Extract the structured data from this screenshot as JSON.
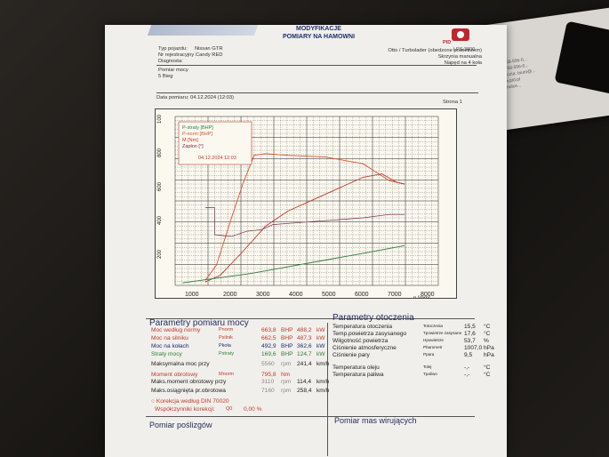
{
  "header": {
    "brand_line1": "MODYFIKACJE",
    "brand_line2": "POMIARY NA HAMOWNI",
    "pid_label": "PID",
    "lps": "LPS 3000",
    "vehicle_type_label": "Typ pojazdu:",
    "vehicle_type": "Nissan GTR",
    "registration_label": "Nr rejestracyjny",
    "registration": "Candy RED",
    "diagnosis_label": "Diagnosta:",
    "engine_info": "Otto / Turbolader (obedzone powietrzem)",
    "gearbox": "Skrzynia manualna",
    "drive": "Napęd na 4 koła",
    "measurement_type": "Pomiar mocy",
    "profile": "5 Bieg",
    "date_label": "Data pomiaru:",
    "date": "04.12.2024 (12:03)",
    "page_label": "Strona 1"
  },
  "graph": {
    "y_left_ticks": [
      "100",
      "800",
      "600",
      "400",
      "200"
    ],
    "x_ticks": [
      "1000",
      "2000",
      "3000",
      "4000",
      "5000",
      "6000",
      "7000",
      "8000"
    ],
    "x_unit": "n [rpm]",
    "legend": [
      "P-straty [BHP]",
      "P-norm [BHP]",
      "M [Nm]",
      "Zapłon [°]"
    ],
    "legend_date": "04.12.2024 12:03",
    "colors": {
      "power": "#d9542b",
      "torque": "#c0392b",
      "loss": "#2f7d3a",
      "ignition": "#7a2a4a"
    }
  },
  "params_power": {
    "title": "Parametry pomiaru mocy",
    "rows": [
      {
        "label": "Moc według normy",
        "sym": "Pnorm",
        "v1": "663,8",
        "u1": "BHP",
        "v2": "488,2",
        "u2": "kW"
      },
      {
        "label": "Moc na silniku",
        "sym": "Psilnik",
        "v1": "662,5",
        "u1": "BHP",
        "v2": "487,3",
        "u2": "kW"
      },
      {
        "label": "Moc na kołach",
        "sym": "Pkoła",
        "v1": "492,9",
        "u1": "BHP",
        "v2": "362,6",
        "u2": "kW"
      },
      {
        "label": "Straty mocy",
        "sym": "Pstraty",
        "v1": "169,6",
        "u1": "BHP",
        "v2": "124,7",
        "u2": "kW"
      }
    ],
    "max_power_rpm_label": "Maksymalna moc przy",
    "max_power_rpm": "5560",
    "max_power_speed": "241,4",
    "torque_label": "Moment obrotowy",
    "torque_sym": "Mnorm",
    "torque_value": "795,8",
    "torque_unit": "Nm",
    "max_torque_label": "Maks.moment obrotowy przy",
    "max_torque_rpm": "3110",
    "max_torque_speed": "114,4",
    "max_rpm_label": "Maks.osiągnięta pr.obrotowa",
    "max_rpm": "7160",
    "max_rpm_speed": "258,4",
    "rpm_unit": "rpm",
    "speed_unit": "km/h",
    "correction_label": "Korekcja według DIN 70020",
    "correction_factor_label": "Współczynniki korekcji:",
    "correction_sym": "Q0",
    "correction_value": "0,00 %"
  },
  "params_env": {
    "title": "Parametry otoczenia",
    "rows": [
      {
        "label": "Temperatura otoczenia",
        "sym": "Totoczenia",
        "value": "15,5",
        "unit": "°C"
      },
      {
        "label": "Temp.powietrza zasysanego",
        "sym": "Tpowietrze zasysane",
        "value": "17,6",
        "unit": "°C"
      },
      {
        "label": "Wilgotność powietrza",
        "sym": "Hpowietrze",
        "value": "53,7",
        "unit": "%"
      },
      {
        "label": "Ciśnienie atmosferyczne",
        "sym": "Pbarometr",
        "value": "1007,0",
        "unit": "hPa"
      },
      {
        "label": "Ciśnienie pary",
        "sym": "Ppara",
        "value": "9,5",
        "unit": "hPa"
      },
      {
        "label": "Temperatura oleju",
        "sym": "Tolej",
        "value": "-,-",
        "unit": "°C"
      },
      {
        "label": "Temperatura paliwa",
        "sym": "Tpaliwo",
        "value": "-,-",
        "unit": "°C"
      }
    ]
  },
  "footer": {
    "left_title": "Pomiar poślizgów",
    "right_title": "Pomiar mas wirujących"
  },
  "background": {
    "card_lines": [
      "Tel.: 58-556-0...",
      "Fax: 58-556-0...",
      "e-poczta: biuro@...",
      "www.pid.pl",
      "Hamulce..."
    ]
  }
}
